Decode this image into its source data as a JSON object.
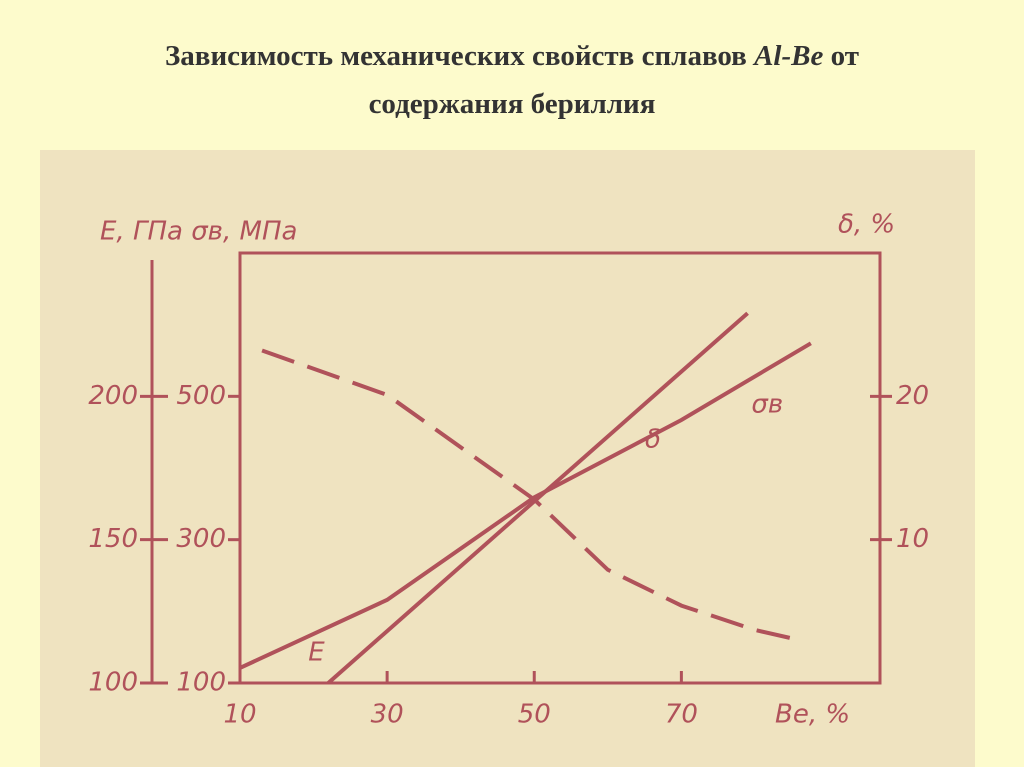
{
  "chart_data": {
    "type": "line",
    "title": [
      "Зависимость механических свойств сплавов",
      "Al-Be",
      "от",
      "содержания бериллия"
    ],
    "y_label": "E, ГПа  σв, МПа",
    "y2_label": "δ, %",
    "x_label": "Be, %",
    "xlim": [
      10,
      97
    ],
    "xticks": [
      10,
      30,
      50,
      70
    ],
    "ylim": [
      100,
      700
    ],
    "yticks": [
      100,
      300,
      500
    ],
    "y3lim": [
      100,
      250
    ],
    "y3ticks": [
      100,
      150,
      200
    ],
    "y2lim": [
      0,
      30
    ],
    "y2ticks": [
      10,
      20
    ],
    "color": "#b0525a",
    "series": [
      {
        "name": "E",
        "axis": "y3",
        "dashed": false,
        "x": [
          22,
          79
        ],
        "values": [
          100,
          229
        ]
      },
      {
        "name": "σв",
        "axis": "y",
        "dashed": false,
        "x": [
          10,
          30,
          50,
          70,
          87.6
        ],
        "values": [
          121,
          216,
          359,
          467,
          574
        ]
      },
      {
        "name": "δ",
        "axis": "y2",
        "dashed": true,
        "x": [
          13,
          30,
          50,
          60,
          70,
          80,
          86
        ],
        "values": [
          23.2,
          20.1,
          12.8,
          7.9,
          5.4,
          3.7,
          3.0
        ]
      }
    ]
  }
}
